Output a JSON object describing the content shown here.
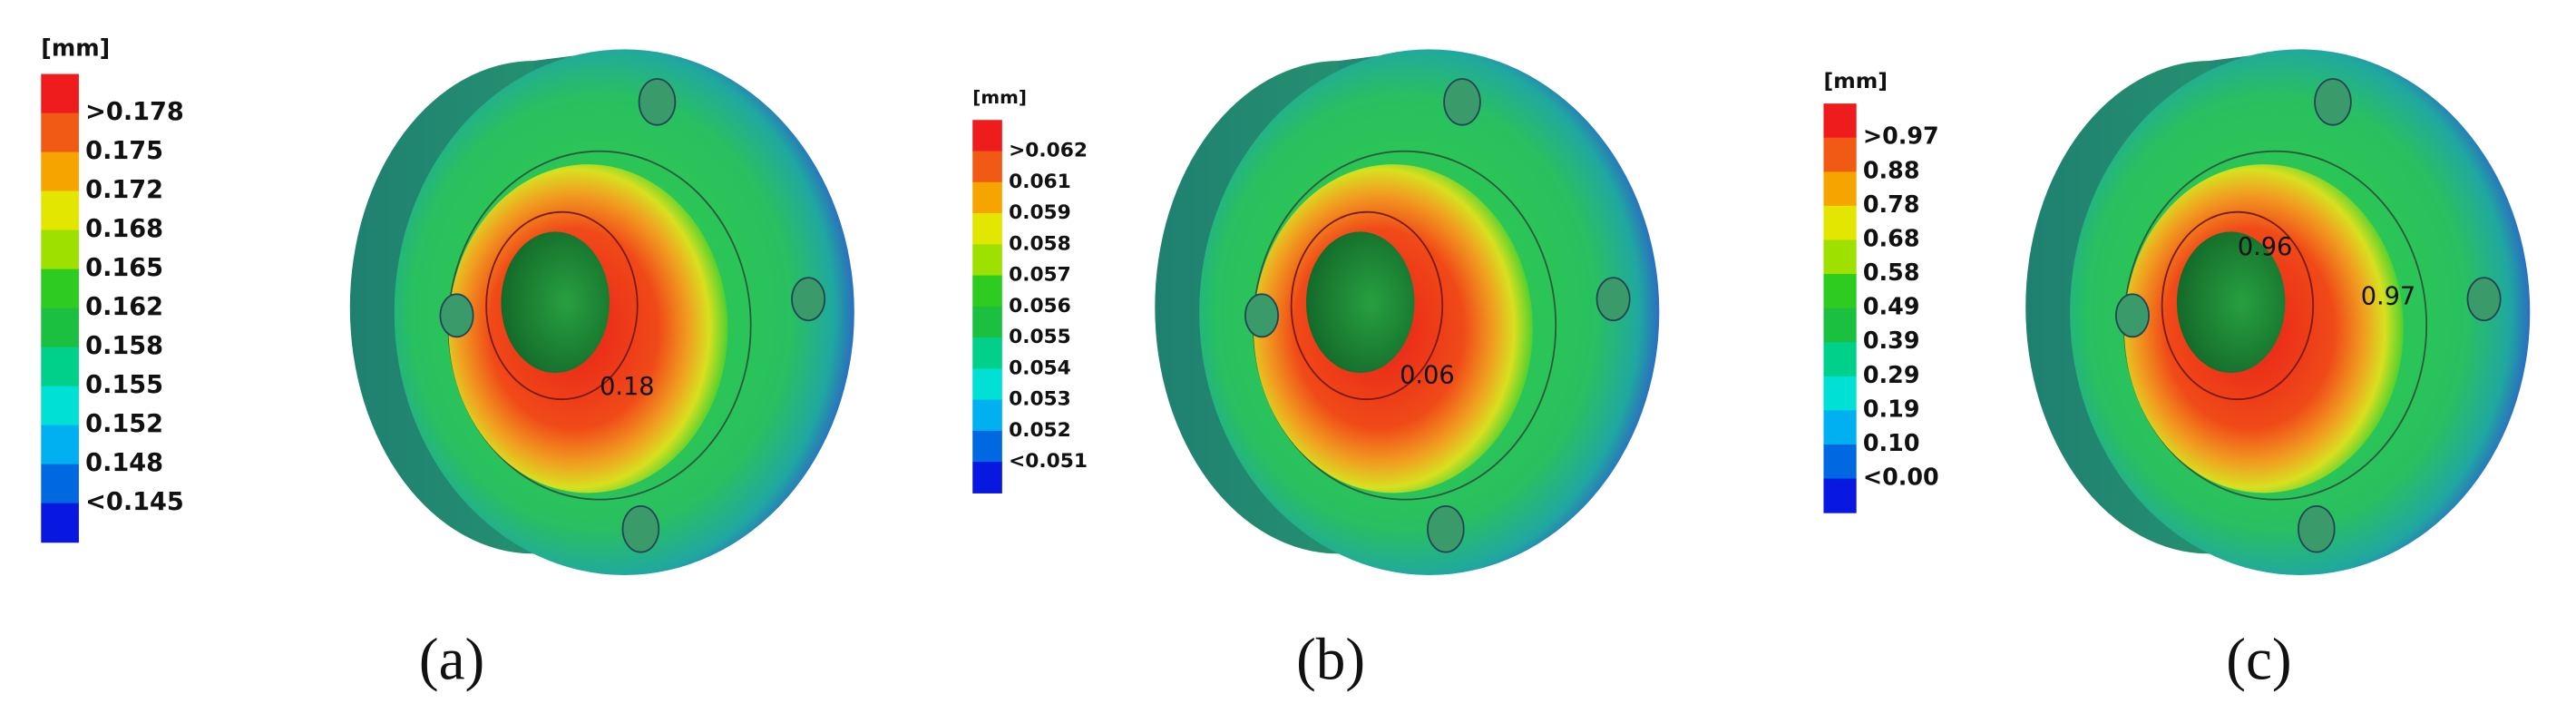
{
  "panels": [
    {
      "unit": "[mm]",
      "scale": [
        ">0.178",
        "0.175",
        "0.172",
        "0.168",
        "0.165",
        "0.162",
        "0.158",
        "0.155",
        "0.152",
        "0.148",
        "<0.145"
      ],
      "annotations": [
        "0.18"
      ],
      "caption": "(a)"
    },
    {
      "unit": "[mm]",
      "scale": [
        ">0.062",
        "0.061",
        "0.059",
        "0.058",
        "0.057",
        "0.056",
        "0.055",
        "0.054",
        "0.053",
        "0.052",
        "<0.051"
      ],
      "annotations": [
        "0.06"
      ],
      "caption": "(b)"
    },
    {
      "unit": "[mm]",
      "scale": [
        ">0.97",
        "0.88",
        "0.78",
        "0.68",
        "0.58",
        "0.49",
        "0.39",
        "0.29",
        "0.19",
        "0.10",
        "<0.00"
      ],
      "annotations": [
        "0.96",
        "0.97"
      ],
      "caption": "(c)"
    }
  ]
}
